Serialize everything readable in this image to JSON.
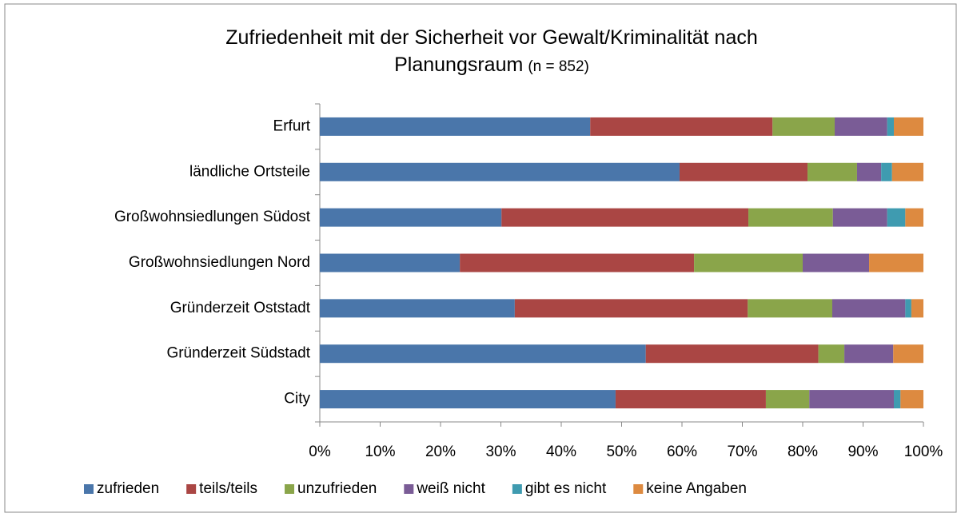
{
  "chart_data": {
    "type": "stacked-barh",
    "title": "Zufriedenheit mit der Sicherheit vor Gewalt/Kriminalität nach Planungsraum",
    "subtitle": "(n = 852)",
    "categories": [
      "Erfurt",
      "ländliche Ortsteile",
      "Großwohnsiedlungen Südost",
      "Großwohnsiedlungen Nord",
      "Gründerzeit Oststadt",
      "Gründerzeit Südstadt",
      "City"
    ],
    "series": [
      {
        "name": "zufrieden",
        "color": "#4a76aa",
        "values": [
          44.8,
          59.6,
          30.1,
          23.2,
          32.3,
          54.0,
          49.0
        ]
      },
      {
        "name": "teils/teils",
        "color": "#aa4644",
        "values": [
          30.2,
          21.2,
          40.9,
          38.8,
          38.6,
          28.6,
          24.9
        ]
      },
      {
        "name": "unzufrieden",
        "color": "#8aa54a",
        "values": [
          10.3,
          8.2,
          14.0,
          18.0,
          14.0,
          4.3,
          7.2
        ]
      },
      {
        "name": "weiß nicht",
        "color": "#7a5c96",
        "values": [
          8.7,
          4.0,
          9.0,
          11.0,
          12.1,
          8.1,
          14.0
        ]
      },
      {
        "name": "gibt es nicht",
        "color": "#3f9bb0",
        "values": [
          1.1,
          1.8,
          3.0,
          0,
          1.0,
          0,
          1.1
        ]
      },
      {
        "name": "keine Angaben",
        "color": "#dd8a40",
        "values": [
          4.9,
          5.2,
          3.0,
          9.0,
          2.0,
          5.0,
          3.8
        ]
      }
    ],
    "xlim": [
      0,
      100
    ],
    "xticks": [
      {
        "value": 0,
        "label": "0%"
      },
      {
        "value": 10,
        "label": "10%"
      },
      {
        "value": 20,
        "label": "20%"
      },
      {
        "value": 30,
        "label": "30%"
      },
      {
        "value": 40,
        "label": "40%"
      },
      {
        "value": 50,
        "label": "50%"
      },
      {
        "value": 60,
        "label": "60%"
      },
      {
        "value": 70,
        "label": "70%"
      },
      {
        "value": 80,
        "label": "80%"
      },
      {
        "value": 90,
        "label": "90%"
      },
      {
        "value": 100,
        "label": "100%"
      }
    ],
    "legend": "bottom"
  }
}
